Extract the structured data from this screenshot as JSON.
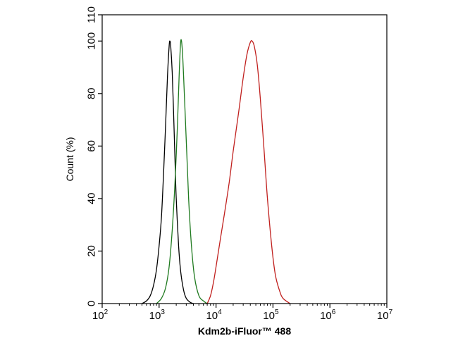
{
  "chart_data": {
    "type": "line",
    "title": "",
    "xlabel": "Kdm2b-iFluor™ 488",
    "ylabel": "Count  (%)",
    "x_scale": "log",
    "xlim": [
      100,
      10000000
    ],
    "ylim": [
      0,
      110
    ],
    "x_ticks": [
      {
        "base": "10",
        "exp": "2",
        "value": 100
      },
      {
        "base": "10",
        "exp": "3",
        "value": 1000
      },
      {
        "base": "10",
        "exp": "4",
        "value": 10000
      },
      {
        "base": "10",
        "exp": "5",
        "value": 100000
      },
      {
        "base": "10",
        "exp": "6",
        "value": 1000000
      },
      {
        "base": "10",
        "exp": "7",
        "value": 10000000
      }
    ],
    "y_ticks": [
      "0",
      "20",
      "40",
      "60",
      "80",
      "100",
      "110"
    ],
    "grid": false,
    "legend": "none",
    "series": [
      {
        "color": "#000000",
        "points": [
          [
            500,
            0
          ],
          [
            600,
            1
          ],
          [
            700,
            3
          ],
          [
            800,
            7
          ],
          [
            900,
            13
          ],
          [
            1000,
            22
          ],
          [
            1100,
            33
          ],
          [
            1200,
            50
          ],
          [
            1300,
            68
          ],
          [
            1400,
            86
          ],
          [
            1500,
            98
          ],
          [
            1550,
            100
          ],
          [
            1600,
            98
          ],
          [
            1700,
            88
          ],
          [
            1800,
            72
          ],
          [
            1900,
            55
          ],
          [
            2000,
            40
          ],
          [
            2200,
            22
          ],
          [
            2400,
            12
          ],
          [
            2700,
            5
          ],
          [
            3000,
            2
          ],
          [
            3500,
            0.5
          ],
          [
            4000,
            0
          ]
        ]
      },
      {
        "color": "#1f7a1f",
        "points": [
          [
            900,
            0
          ],
          [
            1100,
            2
          ],
          [
            1300,
            6
          ],
          [
            1500,
            14
          ],
          [
            1700,
            28
          ],
          [
            1900,
            46
          ],
          [
            2100,
            68
          ],
          [
            2250,
            87
          ],
          [
            2400,
            100
          ],
          [
            2550,
            97
          ],
          [
            2700,
            86
          ],
          [
            3000,
            62
          ],
          [
            3300,
            40
          ],
          [
            3700,
            22
          ],
          [
            4200,
            10
          ],
          [
            5000,
            3
          ],
          [
            6000,
            1
          ],
          [
            7000,
            0
          ]
        ]
      },
      {
        "color": "#c0201e",
        "points": [
          [
            7000,
            0
          ],
          [
            8000,
            3
          ],
          [
            9000,
            8
          ],
          [
            10000,
            14
          ],
          [
            12000,
            25
          ],
          [
            14000,
            34
          ],
          [
            17000,
            46
          ],
          [
            20000,
            58
          ],
          [
            25000,
            73
          ],
          [
            30000,
            86
          ],
          [
            35000,
            95
          ],
          [
            40000,
            99.5
          ],
          [
            43000,
            100
          ],
          [
            47000,
            98
          ],
          [
            53000,
            91
          ],
          [
            60000,
            78
          ],
          [
            70000,
            58
          ],
          [
            80000,
            40
          ],
          [
            95000,
            22
          ],
          [
            110000,
            11
          ],
          [
            130000,
            5
          ],
          [
            150000,
            2
          ],
          [
            200000,
            0
          ]
        ]
      }
    ]
  }
}
